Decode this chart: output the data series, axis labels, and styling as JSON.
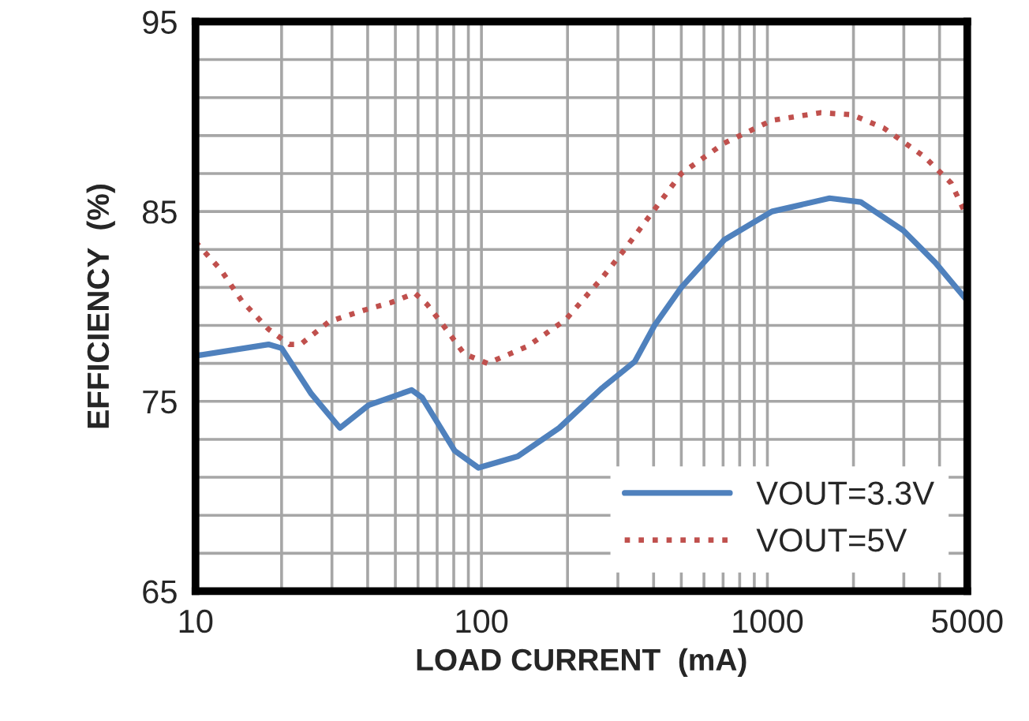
{
  "chart_data": {
    "type": "line",
    "xlabel": "LOAD CURRENT  (mA)",
    "ylabel": "EFFICIENCY  (%)",
    "log": "x",
    "xlim": [
      10,
      5000
    ],
    "ylim": [
      65,
      95
    ],
    "xticks": [
      10,
      {
        "value": 20,
        "label": null
      },
      {
        "value": 30,
        "label": null
      },
      {
        "value": 40,
        "label": null
      },
      {
        "value": 50,
        "label": null
      },
      {
        "value": 60,
        "label": null
      },
      {
        "value": 70,
        "label": null
      },
      {
        "value": 80,
        "label": null
      },
      {
        "value": 90,
        "label": null
      },
      100,
      {
        "value": 200,
        "label": null
      },
      {
        "value": 300,
        "label": null
      },
      {
        "value": 400,
        "label": null
      },
      {
        "value": 500,
        "label": null
      },
      {
        "value": 600,
        "label": null
      },
      {
        "value": 700,
        "label": null
      },
      {
        "value": 800,
        "label": null
      },
      {
        "value": 900,
        "label": null
      },
      1000,
      {
        "value": 2000,
        "label": null
      },
      {
        "value": 3000,
        "label": null
      },
      {
        "value": 4000,
        "label": null
      },
      5000
    ],
    "yticks": [
      65,
      {
        "value": 67,
        "label": null
      },
      {
        "value": 69,
        "label": null
      },
      {
        "value": 71,
        "label": null
      },
      {
        "value": 73,
        "label": null
      },
      75,
      {
        "value": 77,
        "label": null
      },
      {
        "value": 79,
        "label": null
      },
      {
        "value": 81,
        "label": null
      },
      {
        "value": 83,
        "label": null
      },
      85,
      {
        "value": 87,
        "label": null
      },
      {
        "value": 89,
        "label": null
      },
      {
        "value": 91,
        "label": null
      },
      {
        "value": 93,
        "label": null
      },
      95
    ],
    "grid": true,
    "legend": "bottom right",
    "marker": "none",
    "series": [
      {
        "name": "VOUT=3.3V",
        "color": "#4f81bd",
        "line_style": "solid",
        "x": [
          10,
          18,
          20,
          25.4,
          32,
          40.3,
          57,
          62,
          80.6,
          97.6,
          134,
          187,
          264,
          344,
          403,
          500,
          706,
          1037,
          1650,
          2120,
          2990,
          3870,
          5000
        ],
        "values": [
          77.4,
          78.0,
          77.8,
          75.4,
          73.6,
          74.8,
          75.6,
          75.2,
          72.4,
          71.5,
          72.1,
          73.6,
          75.7,
          77.1,
          79.0,
          81.0,
          83.5,
          85.0,
          85.7,
          85.5,
          84.0,
          82.3,
          80.3
        ]
      },
      {
        "name": "VOUT=5V",
        "color": "#c0504d",
        "line_style": "dotted",
        "x": [
          10,
          12.3,
          14.5,
          18,
          21.3,
          23.3,
          29.3,
          38.8,
          48.2,
          58.5,
          64.6,
          73.6,
          87,
          105,
          145,
          197,
          264,
          313,
          398,
          500,
          706,
          1037,
          1530,
          1970,
          2550,
          3530,
          4390,
          5000
        ],
        "values": [
          83.4,
          81.9,
          80.3,
          78.8,
          78.0,
          78.0,
          79.2,
          79.8,
          80.2,
          80.7,
          80.1,
          79.0,
          77.5,
          77.0,
          77.9,
          79.3,
          81.5,
          82.9,
          85.0,
          87.0,
          88.6,
          89.8,
          90.2,
          90.1,
          89.4,
          87.9,
          86.5,
          84.7
        ]
      }
    ]
  }
}
